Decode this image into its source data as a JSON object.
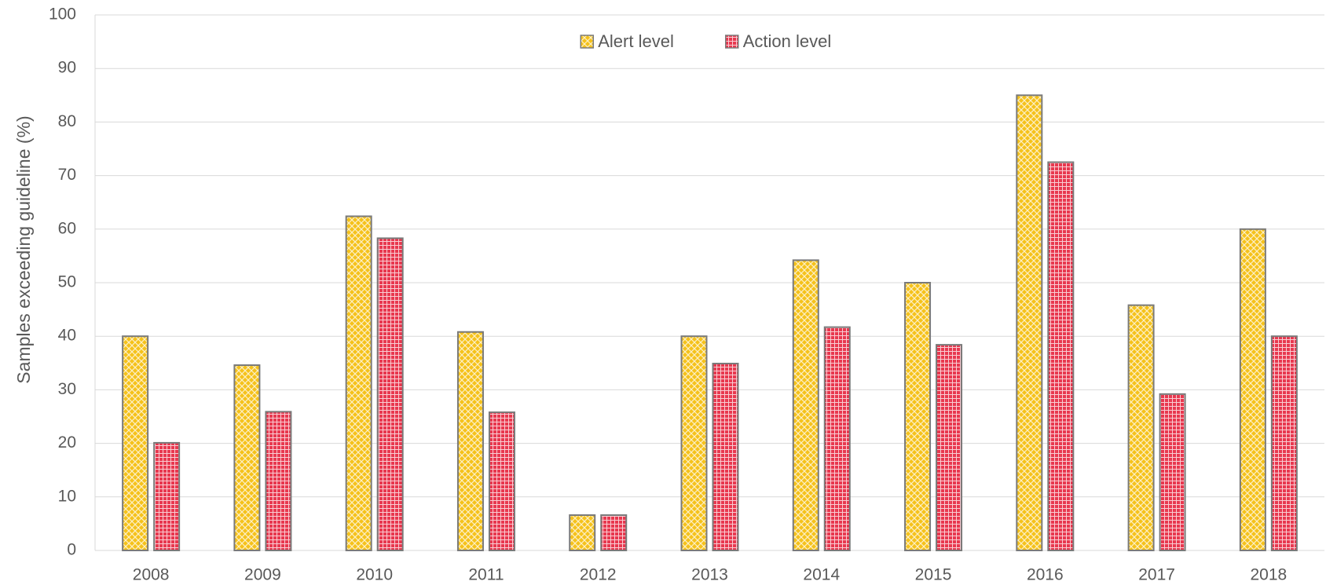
{
  "chart_data": {
    "type": "bar",
    "y_label": "Samples exceeding guideline (%)",
    "categories": [
      "2008",
      "2009",
      "2010",
      "2011",
      "2012",
      "2013",
      "2014",
      "2015",
      "2016",
      "2017",
      "2018"
    ],
    "series": [
      {
        "name": "Alert level",
        "color": "#f5c21b",
        "values": [
          40,
          34.6,
          62.4,
          40.8,
          6.6,
          40,
          54.2,
          50,
          85,
          45.8,
          60
        ]
      },
      {
        "name": "Action level",
        "color": "#e8384f",
        "values": [
          20.1,
          25.9,
          58.3,
          25.8,
          6.6,
          34.9,
          41.7,
          38.4,
          72.5,
          29.2,
          40
        ]
      }
    ],
    "ylim": [
      0,
      100
    ],
    "yticks": [
      0,
      10,
      20,
      30,
      40,
      50,
      60,
      70,
      80,
      90,
      100
    ],
    "grid": true,
    "legend": "top"
  }
}
